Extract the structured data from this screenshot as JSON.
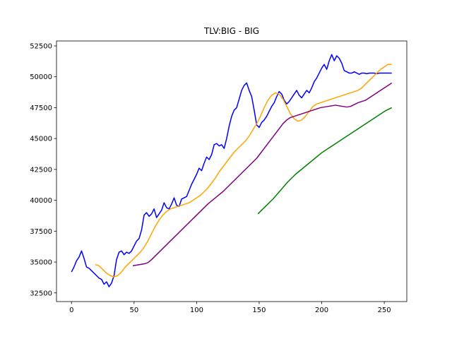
{
  "chart_data": {
    "type": "line",
    "title": "TLV:BIG - BIG",
    "xlabel": "",
    "ylabel": "",
    "xlim": [
      -12,
      268
    ],
    "ylim": [
      31800,
      52900
    ],
    "x_ticks": [
      0,
      50,
      100,
      150,
      200,
      250
    ],
    "y_ticks": [
      32500,
      35000,
      37500,
      40000,
      42500,
      45000,
      47500,
      50000,
      52500
    ],
    "grid": false,
    "colors": {
      "price": "#0000ff",
      "ma_short": "#ffa500",
      "ma_mid": "#800080",
      "ma_long": "#008000"
    },
    "series": [
      {
        "key": "price",
        "x": [
          0,
          2,
          4,
          6,
          8,
          10,
          12,
          14,
          16,
          18,
          20,
          22,
          24,
          26,
          28,
          30,
          32,
          34,
          36,
          38,
          40,
          42,
          44,
          46,
          48,
          50,
          52,
          54,
          56,
          58,
          60,
          62,
          64,
          66,
          68,
          70,
          72,
          74,
          76,
          78,
          80,
          82,
          84,
          86,
          88,
          90,
          92,
          94,
          96,
          98,
          100,
          102,
          104,
          106,
          108,
          110,
          112,
          114,
          116,
          118,
          120,
          122,
          124,
          126,
          128,
          130,
          132,
          134,
          136,
          138,
          140,
          142,
          144,
          146,
          148,
          150,
          152,
          154,
          156,
          158,
          160,
          162,
          164,
          166,
          168,
          170,
          172,
          174,
          176,
          178,
          180,
          182,
          184,
          186,
          188,
          190,
          192,
          194,
          196,
          198,
          200,
          202,
          204,
          206,
          208,
          210,
          212,
          214,
          216,
          218,
          220,
          222,
          224,
          226,
          228,
          230,
          232,
          234,
          236,
          238,
          240,
          242,
          244,
          246,
          248,
          250,
          252,
          254,
          256
        ],
        "y": [
          34200,
          34600,
          35100,
          35400,
          35900,
          35300,
          34600,
          34500,
          34300,
          34100,
          33900,
          33700,
          33600,
          33200,
          33400,
          33000,
          33300,
          33900,
          35200,
          35800,
          35900,
          35600,
          35800,
          35700,
          35900,
          36300,
          36700,
          36900,
          37600,
          38800,
          39000,
          38700,
          38900,
          39300,
          38600,
          38900,
          39200,
          39800,
          39400,
          39300,
          39700,
          40200,
          39600,
          39500,
          40100,
          40200,
          40300,
          40800,
          41300,
          41700,
          42100,
          42600,
          42400,
          43000,
          43500,
          43300,
          43700,
          44500,
          44600,
          44400,
          44500,
          44200,
          45000,
          46000,
          46800,
          47300,
          47500,
          48200,
          48900,
          49300,
          49500,
          48900,
          48400,
          47300,
          46100,
          45900,
          46300,
          46500,
          46800,
          47200,
          47600,
          47900,
          48400,
          48800,
          48600,
          48100,
          47800,
          48000,
          48300,
          48600,
          48900,
          48500,
          48300,
          48600,
          48900,
          48700,
          49100,
          49600,
          49900,
          50300,
          50700,
          51000,
          50600,
          51300,
          51800,
          51300,
          51700,
          51500,
          51100,
          50500,
          50400,
          50300,
          50300,
          50400,
          50300,
          50200,
          50300,
          50300,
          50250,
          50300,
          50300,
          50300,
          50250,
          50300,
          50300,
          50300,
          50300,
          50300,
          50300
        ]
      },
      {
        "key": "ma_short",
        "x": [
          19,
          22,
          25,
          28,
          31,
          34,
          37,
          40,
          43,
          46,
          49,
          52,
          55,
          58,
          61,
          64,
          67,
          70,
          73,
          76,
          79,
          82,
          85,
          88,
          91,
          94,
          97,
          100,
          103,
          106,
          109,
          112,
          115,
          118,
          121,
          124,
          127,
          130,
          133,
          136,
          139,
          142,
          145,
          148,
          151,
          154,
          157,
          160,
          163,
          166,
          169,
          172,
          175,
          178,
          181,
          184,
          187,
          190,
          193,
          196,
          199,
          202,
          205,
          208,
          211,
          214,
          217,
          220,
          223,
          226,
          229,
          232,
          235,
          238,
          241,
          244,
          247,
          250,
          253,
          256
        ],
        "y": [
          34800,
          34700,
          34400,
          34100,
          33900,
          33800,
          33900,
          34200,
          34600,
          34900,
          35200,
          35500,
          35800,
          36200,
          36700,
          37300,
          37900,
          38400,
          38800,
          39100,
          39300,
          39400,
          39500,
          39600,
          39700,
          39800,
          40000,
          40200,
          40400,
          40700,
          41000,
          41400,
          41800,
          42300,
          42700,
          43100,
          43500,
          43900,
          44200,
          44500,
          44800,
          45200,
          45700,
          46200,
          46800,
          47500,
          48100,
          48500,
          48700,
          48600,
          48200,
          47600,
          47000,
          46600,
          46400,
          46500,
          46800,
          47200,
          47600,
          47800,
          47900,
          48000,
          48100,
          48200,
          48300,
          48400,
          48500,
          48600,
          48700,
          48800,
          48900,
          49100,
          49400,
          49700,
          50000,
          50300,
          50600,
          50800,
          51000,
          51000
        ]
      },
      {
        "key": "ma_mid",
        "x": [
          49,
          52,
          55,
          58,
          61,
          64,
          67,
          70,
          73,
          76,
          79,
          82,
          85,
          88,
          91,
          94,
          97,
          100,
          103,
          106,
          109,
          112,
          115,
          118,
          121,
          124,
          127,
          130,
          133,
          136,
          139,
          142,
          145,
          148,
          151,
          154,
          157,
          160,
          163,
          166,
          169,
          172,
          175,
          178,
          181,
          184,
          187,
          190,
          193,
          196,
          199,
          202,
          205,
          208,
          211,
          214,
          217,
          220,
          223,
          226,
          229,
          232,
          235,
          238,
          241,
          244,
          247,
          250,
          253,
          256
        ],
        "y": [
          34700,
          34750,
          34800,
          34850,
          34950,
          35200,
          35500,
          35800,
          36100,
          36400,
          36700,
          37000,
          37300,
          37600,
          37900,
          38200,
          38500,
          38800,
          39100,
          39400,
          39700,
          39950,
          40200,
          40450,
          40700,
          41000,
          41300,
          41600,
          41900,
          42200,
          42500,
          42800,
          43100,
          43400,
          43800,
          44200,
          44600,
          45000,
          45400,
          45800,
          46200,
          46500,
          46700,
          46800,
          46900,
          47000,
          47100,
          47200,
          47300,
          47400,
          47500,
          47550,
          47600,
          47650,
          47700,
          47650,
          47600,
          47550,
          47600,
          47750,
          47900,
          48000,
          48100,
          48300,
          48500,
          48700,
          48900,
          49100,
          49300,
          49500
        ]
      },
      {
        "key": "ma_long",
        "x": [
          149,
          152,
          155,
          158,
          161,
          164,
          167,
          170,
          173,
          176,
          179,
          182,
          185,
          188,
          191,
          194,
          197,
          200,
          203,
          206,
          209,
          212,
          215,
          218,
          221,
          224,
          227,
          230,
          233,
          236,
          239,
          242,
          245,
          248,
          251,
          254,
          256
        ],
        "y": [
          38900,
          39200,
          39500,
          39800,
          40100,
          40450,
          40800,
          41150,
          41500,
          41800,
          42100,
          42350,
          42600,
          42850,
          43100,
          43350,
          43600,
          43850,
          44050,
          44250,
          44450,
          44650,
          44850,
          45050,
          45250,
          45450,
          45650,
          45850,
          46050,
          46250,
          46450,
          46650,
          46850,
          47050,
          47250,
          47400,
          47500
        ]
      }
    ]
  }
}
